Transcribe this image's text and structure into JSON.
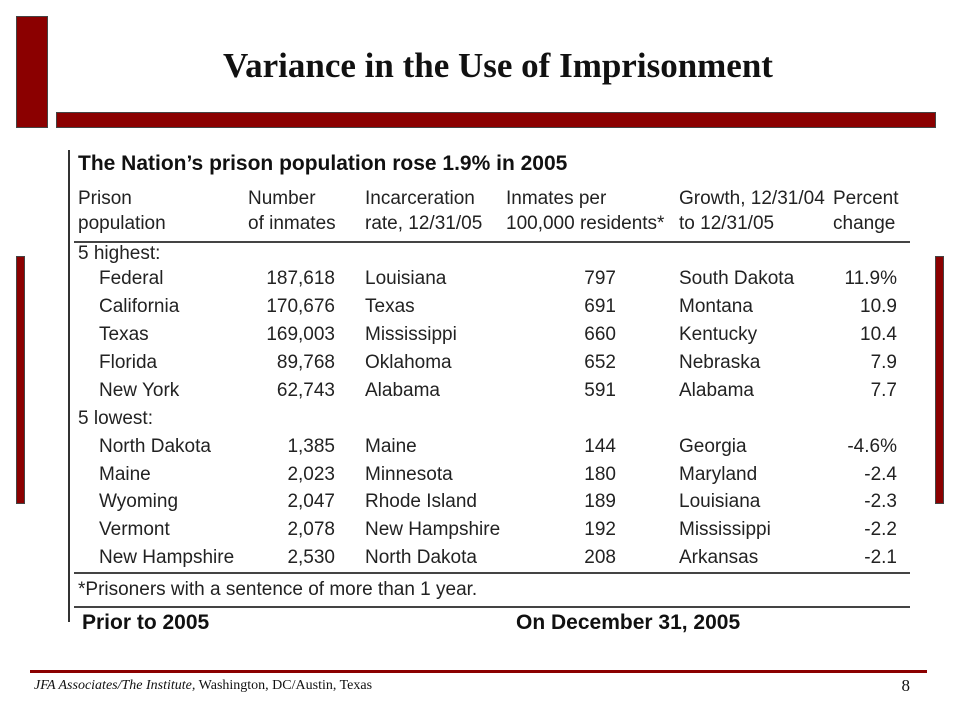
{
  "slide": {
    "title": "Variance in the Use of Imprisonment"
  },
  "table": {
    "title": "The Nation’s prison population rose 1.9% in 2005",
    "headers": [
      [
        "Prison",
        "population"
      ],
      [
        "Number",
        "of inmates"
      ],
      [
        "Incarceration",
        "rate, 12/31/05"
      ],
      [
        "Inmates per",
        "100,000 residents*"
      ],
      [
        "Growth, 12/31/04",
        "to 12/31/05"
      ],
      [
        "Percent",
        "change"
      ]
    ],
    "groups": [
      {
        "label": "5 highest:",
        "rows": [
          [
            "Federal",
            "187,618",
            "Louisiana",
            "797",
            "South Dakota",
            "11.9%"
          ],
          [
            "California",
            "170,676",
            "Texas",
            "691",
            "Montana",
            "10.9"
          ],
          [
            "Texas",
            "169,003",
            "Mississippi",
            "660",
            "Kentucky",
            "10.4"
          ],
          [
            "Florida",
            "89,768",
            "Oklahoma",
            "652",
            "Nebraska",
            "7.9"
          ],
          [
            "New York",
            "62,743",
            "Alabama",
            "591",
            "Alabama",
            "7.7"
          ]
        ]
      },
      {
        "label": "5 lowest:",
        "rows": [
          [
            "North Dakota",
            "1,385",
            "Maine",
            "144",
            "Georgia",
            "-4.6%"
          ],
          [
            "Maine",
            "2,023",
            "Minnesota",
            "180",
            "Maryland",
            "-2.4"
          ],
          [
            "Wyoming",
            "2,047",
            "Rhode Island",
            "189",
            "Louisiana",
            "-2.3"
          ],
          [
            "Vermont",
            "2,078",
            "New Hampshire",
            "192",
            "Mississippi",
            "-2.2"
          ],
          [
            "New Hampshire",
            "2,530",
            "North Dakota",
            "208",
            "Arkansas",
            "-2.1"
          ]
        ]
      }
    ],
    "footnote": "*Prisoners with a sentence of more than 1 year.",
    "cutoff_left": "Prior to 2005",
    "cutoff_right": "On December 31, 2005"
  },
  "footer": {
    "org_italic": "JFA Associates/The Institute,",
    "location": " Washington, DC/Austin, Texas",
    "page_number": "8"
  },
  "colors": {
    "accent": "#8b0000"
  }
}
